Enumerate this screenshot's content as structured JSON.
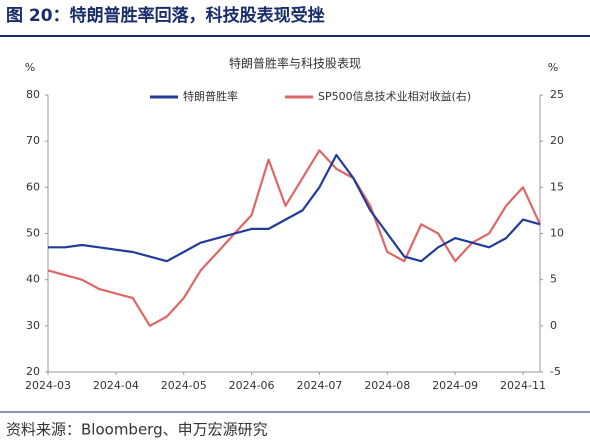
{
  "header": {
    "title": "图 20：特朗普胜率回落，科技股表现受挫"
  },
  "chart_data": {
    "type": "line",
    "title": "特朗普胜率与科技股表现",
    "y_unit": "%",
    "y2_unit": "%",
    "categories": [
      "2024-03",
      null,
      null,
      null,
      "2024-04",
      null,
      null,
      null,
      "2024-05",
      null,
      null,
      null,
      "2024-06",
      null,
      null,
      null,
      "2024-07",
      null,
      null,
      null,
      "2024-08",
      null,
      null,
      null,
      "2024-09",
      null,
      null,
      null,
      "2024-11",
      null
    ],
    "series": [
      {
        "name": "特朗普胜率",
        "color": "#1f3c99",
        "values": [
          47,
          47,
          47.5,
          47,
          46.5,
          46,
          45,
          44,
          46,
          48,
          49,
          50,
          51,
          51,
          53,
          55,
          60,
          67,
          62,
          55,
          50,
          45,
          44,
          47,
          49,
          48,
          47,
          49,
          53,
          52
        ]
      },
      {
        "name": "SP500信息技术业相对收益(右)",
        "color": "#e06666",
        "axis": "y2",
        "values": [
          6,
          5.5,
          5,
          4,
          3.5,
          3,
          0,
          1,
          3,
          6,
          8,
          10,
          12,
          18,
          13,
          16,
          19,
          17,
          16,
          13,
          8,
          7,
          11,
          10,
          7,
          9,
          10,
          13,
          15,
          11
        ]
      }
    ],
    "ylim": [
      20,
      80
    ],
    "yticks": [
      20,
      30,
      40,
      50,
      60,
      70,
      80
    ],
    "y2lim": [
      -5,
      25
    ],
    "y2ticks": [
      -5,
      0,
      5,
      10,
      15,
      20,
      25
    ],
    "grid": false,
    "legend": "top"
  },
  "source": "资料来源：Bloomberg、申万宏源研究"
}
